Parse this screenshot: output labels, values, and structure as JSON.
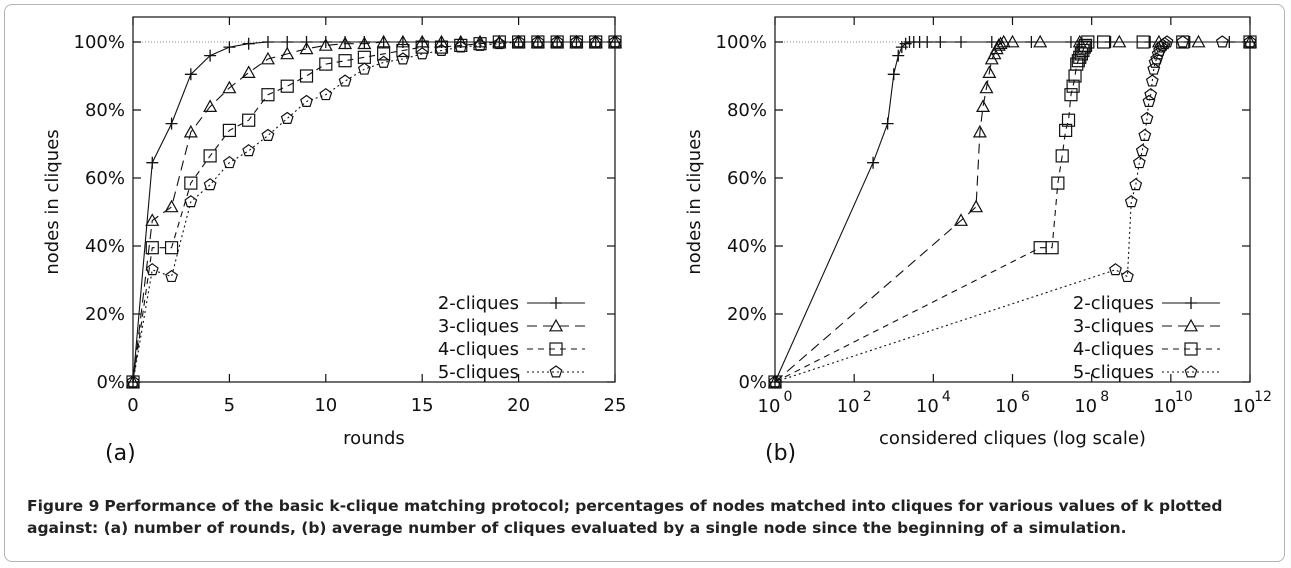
{
  "figure": {
    "label": "Figure 9",
    "caption": "Performance of the basic k-clique matching protocol; percentages of nodes matched into cliques for various values of k plotted against: (a) number of rounds, (b) average number of cliques evaluated by a single node since the beginning of a simulation."
  },
  "chart_data": [
    {
      "type": "line",
      "panel_label": "(a)",
      "title": "",
      "xlabel": "rounds",
      "ylabel": "nodes in cliques",
      "xlim": [
        0,
        25
      ],
      "ylim": [
        0,
        100
      ],
      "x_ticks": [
        0,
        5,
        10,
        15,
        20,
        25
      ],
      "x_tick_labels": [
        "0",
        "5",
        "10",
        "15",
        "20",
        "25"
      ],
      "y_ticks": [
        0,
        20,
        40,
        60,
        80,
        100
      ],
      "y_tick_labels": [
        "0%",
        "20%",
        "40%",
        "60%",
        "80%",
        "100%"
      ],
      "grid": false,
      "reference_line": 100,
      "legend_position": "bottom-right",
      "series": [
        {
          "name": "2-cliques",
          "marker": "plus",
          "dash": "solid",
          "x": [
            0,
            1,
            2,
            3,
            4,
            5,
            6,
            7,
            8,
            9,
            10,
            11,
            12,
            13,
            14,
            15,
            16,
            17,
            18,
            19,
            20,
            21,
            22,
            23,
            24,
            25
          ],
          "y": [
            0,
            64.5,
            76,
            90.5,
            96,
            98.5,
            99.5,
            100,
            100,
            100,
            100,
            100,
            100,
            100,
            100,
            100,
            100,
            100,
            100,
            100,
            100,
            100,
            100,
            100,
            100,
            100
          ]
        },
        {
          "name": "3-cliques",
          "marker": "triangle",
          "dash": "long",
          "x": [
            0,
            1,
            2,
            3,
            4,
            5,
            6,
            7,
            8,
            9,
            10,
            11,
            12,
            13,
            14,
            15,
            16,
            17,
            18,
            19,
            20,
            21,
            22,
            23,
            24,
            25
          ],
          "y": [
            0,
            47.5,
            51.5,
            73.5,
            81,
            86.5,
            91,
            95,
            96.5,
            98,
            99,
            99.5,
            99.5,
            100,
            100,
            100,
            100,
            100,
            100,
            100,
            100,
            100,
            100,
            100,
            100,
            100
          ]
        },
        {
          "name": "4-cliques",
          "marker": "square",
          "dash": "medium",
          "x": [
            0,
            1,
            2,
            3,
            4,
            5,
            6,
            7,
            8,
            9,
            10,
            11,
            12,
            13,
            14,
            15,
            16,
            17,
            18,
            19,
            20,
            21,
            22,
            23,
            24,
            25
          ],
          "y": [
            0,
            39.5,
            39.5,
            58.5,
            66.5,
            74,
            77,
            84.5,
            87,
            90,
            93.5,
            94.5,
            95.5,
            96.5,
            97.5,
            98.5,
            98.5,
            99,
            99.5,
            100,
            100,
            100,
            100,
            100,
            100,
            100
          ]
        },
        {
          "name": "5-cliques",
          "marker": "pentagon",
          "dash": "dotted",
          "x": [
            0,
            1,
            2,
            3,
            4,
            5,
            6,
            7,
            8,
            9,
            10,
            11,
            12,
            13,
            14,
            15,
            16,
            17,
            18,
            19,
            20,
            21,
            22,
            23,
            24,
            25
          ],
          "y": [
            0,
            33,
            31,
            53,
            58,
            64.5,
            68,
            72.5,
            77.5,
            82.5,
            84.5,
            88.5,
            92,
            94,
            95,
            96.5,
            97.5,
            98.5,
            99,
            99.5,
            100,
            100,
            100,
            100,
            100,
            100
          ]
        }
      ]
    },
    {
      "type": "line",
      "panel_label": "(b)",
      "title": "",
      "xlabel": "considered cliques (log scale)",
      "ylabel": "nodes in cliques",
      "xscale": "log",
      "xlim": [
        1,
        1000000000000
      ],
      "ylim": [
        0,
        100
      ],
      "x_ticks": [
        1,
        100,
        10000,
        1000000,
        100000000,
        10000000000,
        1000000000000
      ],
      "x_tick_bases": [
        "10",
        "10",
        "10",
        "10",
        "10",
        "10",
        "10"
      ],
      "x_tick_exponents": [
        "0",
        "2",
        "4",
        "6",
        "8",
        "10",
        "12"
      ],
      "y_ticks": [
        0,
        20,
        40,
        60,
        80,
        100
      ],
      "y_tick_labels": [
        "0%",
        "20%",
        "40%",
        "60%",
        "80%",
        "100%"
      ],
      "grid": false,
      "reference_line": 100,
      "legend_position": "bottom-right",
      "series": [
        {
          "name": "2-cliques",
          "marker": "plus",
          "dash": "solid",
          "x": [
            1,
            300,
            700,
            1000,
            1300,
            1600,
            2000,
            2500,
            3200,
            4500,
            7000,
            15000,
            50000,
            300000,
            3000000,
            30000000,
            300000000,
            3000000000,
            30000000000,
            300000000000,
            1000000000000
          ],
          "y": [
            0,
            64.5,
            76,
            90.5,
            96,
            98.5,
            99.5,
            100,
            100,
            100,
            100,
            100,
            100,
            100,
            100,
            100,
            100,
            100,
            100,
            100,
            100
          ]
        },
        {
          "name": "3-cliques",
          "marker": "triangle",
          "dash": "long",
          "x": [
            1,
            50000,
            120000,
            150000,
            180000,
            220000,
            260000,
            300000,
            350000,
            400000,
            450000,
            500000,
            600000,
            1000000,
            5000000,
            50000000,
            500000000,
            5000000000,
            50000000000,
            1000000000000
          ],
          "y": [
            0,
            47.5,
            51.5,
            73.5,
            81,
            86.5,
            91,
            95,
            96.5,
            98,
            99,
            99.5,
            100,
            100,
            100,
            100,
            100,
            100,
            100,
            100
          ]
        },
        {
          "name": "4-cliques",
          "marker": "square",
          "dash": "medium",
          "x": [
            1,
            5000000,
            10000000,
            14000000,
            18000000,
            22000000,
            26000000,
            30000000,
            34000000,
            38000000,
            42000000,
            46000000,
            50000000,
            55000000,
            60000000,
            65000000,
            70000000,
            80000000,
            200000000,
            2000000000,
            20000000000,
            1000000000000
          ],
          "y": [
            0,
            39.5,
            39.5,
            58.5,
            66.5,
            74,
            77,
            84.5,
            87,
            90,
            93.5,
            94.5,
            95.5,
            96.5,
            97.5,
            98.5,
            99,
            100,
            100,
            100,
            100,
            100
          ]
        },
        {
          "name": "5-cliques",
          "marker": "pentagon",
          "dash": "dotted",
          "x": [
            1,
            400000000,
            800000000,
            1000000000,
            1300000000,
            1600000000,
            1900000000,
            2200000000,
            2500000000,
            2800000000,
            3100000000,
            3400000000,
            3700000000,
            4000000000,
            4400000000,
            4800000000,
            5200000000,
            5700000000,
            6200000000,
            7000000000,
            8000000000,
            20000000000,
            200000000000,
            1000000000000
          ],
          "y": [
            0,
            33,
            31,
            53,
            58,
            64.5,
            68,
            72.5,
            77.5,
            82.5,
            84.5,
            88.5,
            92,
            94,
            95,
            96.5,
            97.5,
            98.5,
            99,
            99.5,
            100,
            100,
            100,
            100
          ]
        }
      ]
    }
  ]
}
